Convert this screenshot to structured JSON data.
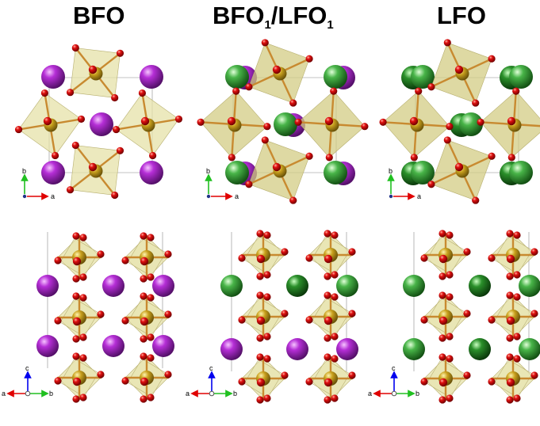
{
  "titles": {
    "bfo": "BFO",
    "hetero_main_1": "BFO",
    "hetero_sub_1": "1",
    "hetero_slash": "/LFO",
    "hetero_sub_2": "1",
    "lfo": "LFO"
  },
  "panels": [
    {
      "structure": "BFO",
      "view": "top",
      "axes": [
        "b",
        "a"
      ],
      "a_site": "purple"
    },
    {
      "structure": "BFO1/LFO1",
      "view": "top",
      "axes": [
        "b",
        "a"
      ],
      "a_site": "green-purple"
    },
    {
      "structure": "LFO",
      "view": "top",
      "axes": [
        "b",
        "a"
      ],
      "a_site": "green"
    },
    {
      "structure": "BFO",
      "view": "side",
      "axes": [
        "c",
        "a",
        "b"
      ],
      "a_site": "purple"
    },
    {
      "structure": "BFO1/LFO1",
      "view": "side",
      "axes": [
        "c",
        "a",
        "b"
      ],
      "a_site": "mixed"
    },
    {
      "structure": "LFO",
      "view": "side",
      "axes": [
        "c",
        "a",
        "b"
      ],
      "a_site": "green"
    }
  ],
  "axis_labels": {
    "a": "a",
    "b": "b",
    "c": "c"
  },
  "colors": {
    "oxygen": "#d40000",
    "iron": "#c8a020",
    "bismuth": "#b030d0",
    "lanthanum": "#3aaa3a",
    "octahedron": "#e6e2a8",
    "axis_a": "#e00000",
    "axis_b": "#20c020",
    "axis_c": "#0000ee"
  }
}
